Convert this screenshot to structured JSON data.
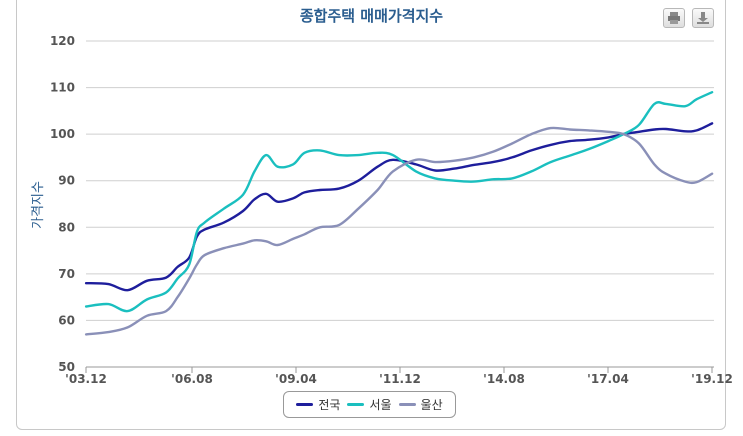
{
  "toolbar": {
    "print_icon": "printer-icon",
    "download_icon": "download-icon"
  },
  "chart_data": {
    "type": "line",
    "title": "종합주택 매매가격지수",
    "ylabel": "가격지수",
    "xlabel": "",
    "ylim": [
      50,
      120
    ],
    "yticks": [
      "50",
      "60",
      "70",
      "80",
      "90",
      "100",
      "110",
      "120"
    ],
    "x_tick_labels": [
      "'03.12",
      "'06.08",
      "'09.04",
      "'11.12",
      "'14.08",
      "'17.04",
      "'19.12"
    ],
    "x_range": [
      2003.917,
      2020.25
    ],
    "grid": true,
    "legend_position": "bottom",
    "x": [
      2003.92,
      2004.5,
      2005.0,
      2005.5,
      2006.0,
      2006.3,
      2006.6,
      2006.8,
      2007.0,
      2007.5,
      2008.0,
      2008.3,
      2008.6,
      2008.9,
      2009.3,
      2009.6,
      2010.0,
      2010.5,
      2011.0,
      2011.5,
      2011.9,
      2012.5,
      2013.0,
      2013.5,
      2014.0,
      2014.5,
      2015.0,
      2015.5,
      2016.0,
      2016.5,
      2017.0,
      2017.5,
      2017.9,
      2018.3,
      2018.7,
      2019.0,
      2019.5,
      2019.8,
      2020.2
    ],
    "series": [
      {
        "name": "전국",
        "color": "#1e1e9c",
        "values": [
          68,
          67.8,
          66.5,
          68.5,
          69.2,
          71.5,
          73.5,
          78,
          79.5,
          81,
          83.5,
          86,
          87.2,
          85.5,
          86.2,
          87.5,
          88,
          88.3,
          90,
          93,
          94.5,
          93.5,
          92.2,
          92.6,
          93.4,
          94,
          95,
          96.5,
          97.7,
          98.5,
          98.8,
          99.3,
          100,
          100.5,
          101,
          101.1,
          100.6,
          100.8,
          102.3
        ]
      },
      {
        "name": "서울",
        "color": "#1abfbf",
        "values": [
          63,
          63.5,
          62,
          64.5,
          66,
          69,
          72,
          79,
          81,
          84,
          87,
          92,
          95.5,
          93,
          93.5,
          96,
          96.5,
          95.5,
          95.5,
          96,
          95.5,
          92,
          90.5,
          90,
          89.8,
          90.3,
          90.5,
          92,
          94,
          95.4,
          96.8,
          98.5,
          100,
          102,
          106.5,
          106.5,
          106,
          107.5,
          109
        ]
      },
      {
        "name": "울산",
        "color": "#8a90b8",
        "values": [
          57,
          57.5,
          58.5,
          61,
          62,
          65,
          69,
          72,
          74,
          75.5,
          76.5,
          77.2,
          77,
          76.2,
          77.5,
          78.5,
          80,
          80.5,
          84,
          88,
          92,
          94.5,
          94,
          94.3,
          95,
          96.2,
          98,
          100,
          101.3,
          101,
          100.8,
          100.5,
          100,
          98,
          93.5,
          91.5,
          89.8,
          89.7,
          91.5
        ]
      }
    ]
  }
}
